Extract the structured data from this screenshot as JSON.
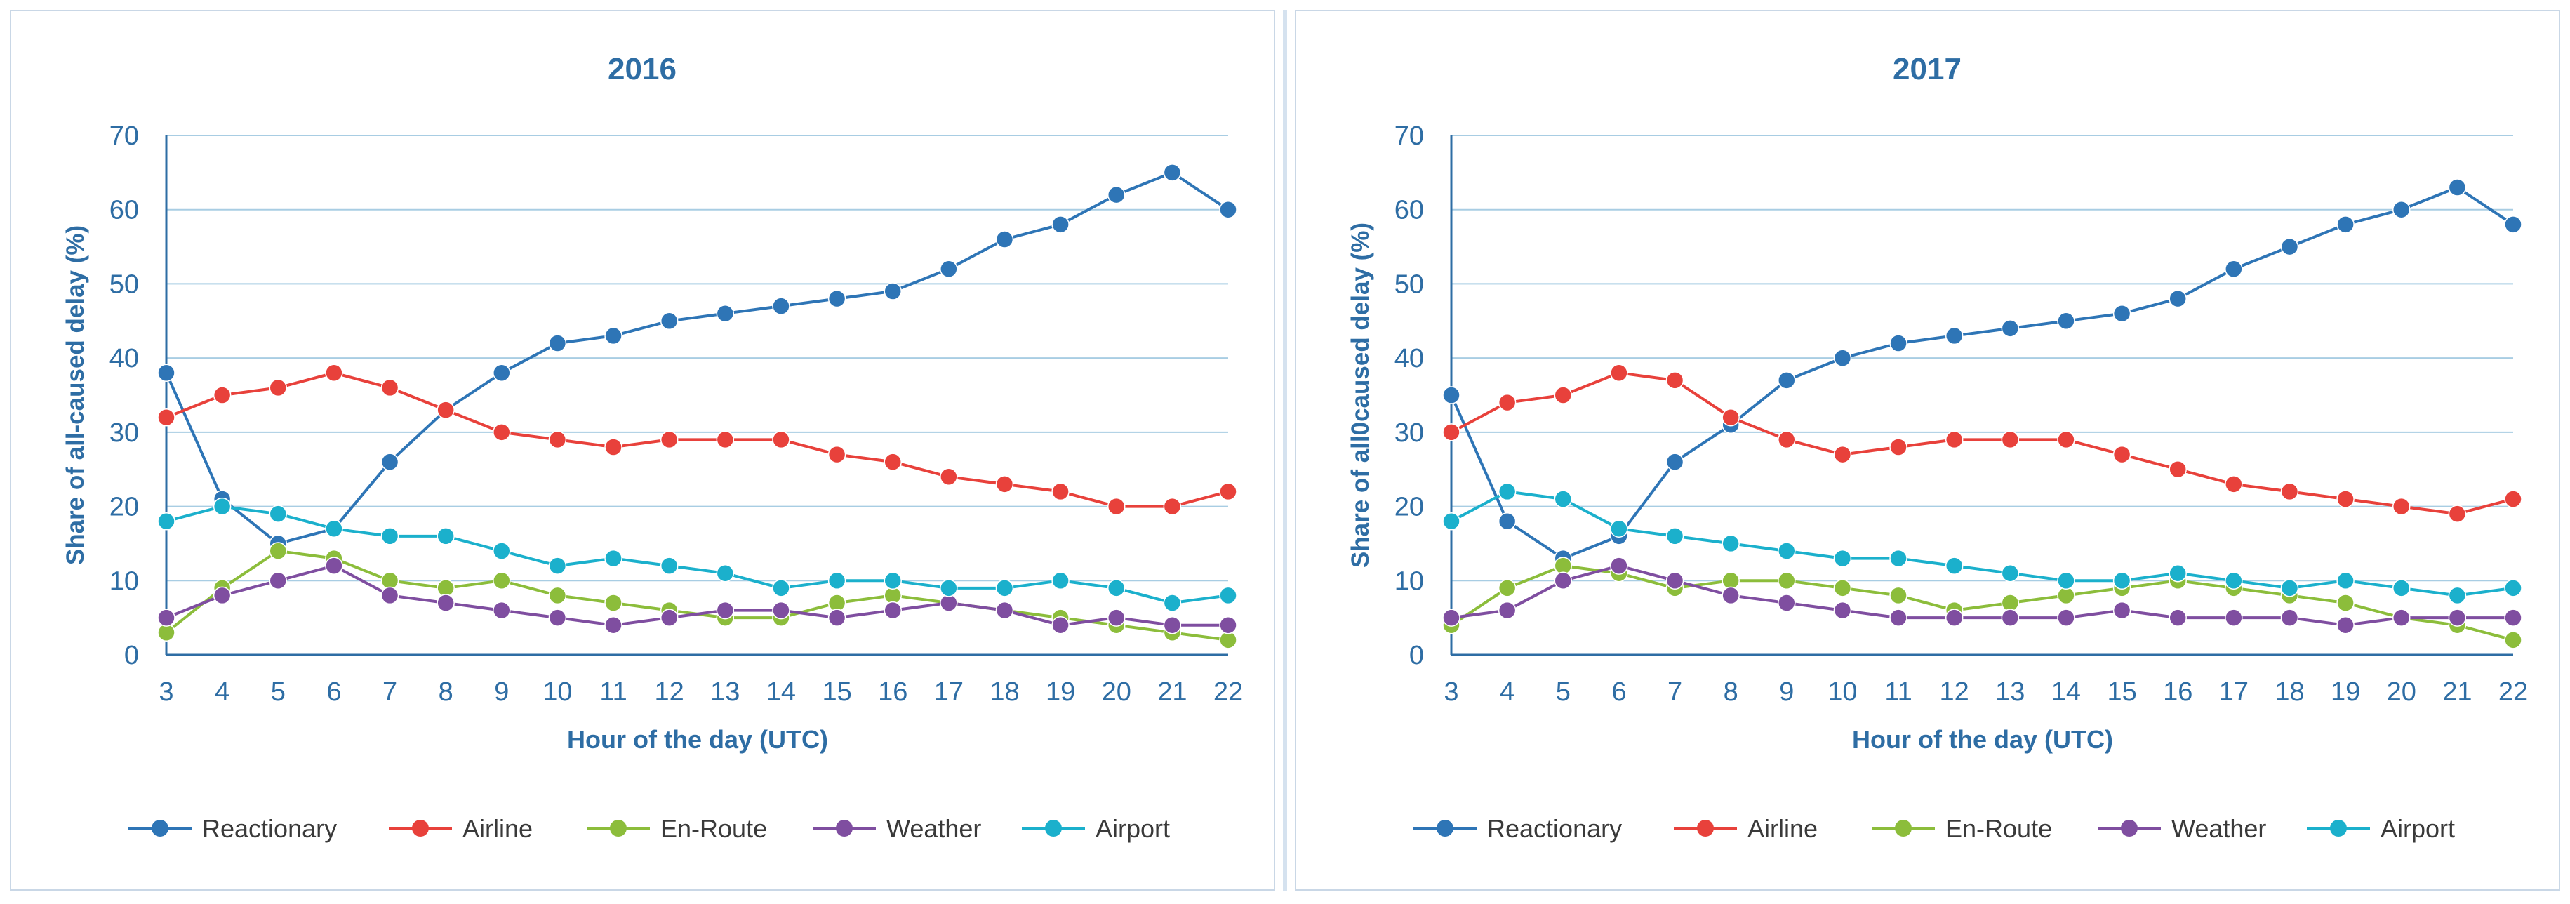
{
  "chart_data": [
    {
      "type": "line",
      "title": "2016",
      "xlabel": "Hour of the day (UTC)",
      "ylabel": "Share of all-caused delay (%)",
      "ylim": [
        0,
        70
      ],
      "yticks": [
        0,
        10,
        20,
        30,
        40,
        50,
        60,
        70
      ],
      "grid": true,
      "legend_position": "bottom",
      "categories": [
        "3",
        "4",
        "5",
        "6",
        "7",
        "8",
        "9",
        "10",
        "11",
        "12",
        "13",
        "14",
        "15",
        "16",
        "17",
        "18",
        "19",
        "20",
        "21",
        "22"
      ],
      "series": [
        {
          "name": "Reactionary",
          "color": "#2e75b6",
          "values": [
            38,
            21,
            15,
            17,
            26,
            33,
            38,
            42,
            43,
            45,
            46,
            47,
            48,
            49,
            52,
            56,
            58,
            62,
            65,
            60
          ]
        },
        {
          "name": "Airline",
          "color": "#e8413b",
          "values": [
            32,
            35,
            36,
            38,
            36,
            33,
            30,
            29,
            28,
            29,
            29,
            29,
            27,
            26,
            24,
            23,
            22,
            20,
            20,
            22
          ]
        },
        {
          "name": "En-Route",
          "color": "#8cbd3b",
          "values": [
            3,
            9,
            14,
            13,
            10,
            9,
            10,
            8,
            7,
            6,
            5,
            5,
            7,
            8,
            7,
            6,
            5,
            4,
            3,
            2
          ]
        },
        {
          "name": "Weather",
          "color": "#7f4ea0",
          "values": [
            5,
            8,
            10,
            12,
            8,
            7,
            6,
            5,
            4,
            5,
            6,
            6,
            5,
            6,
            7,
            6,
            4,
            5,
            4,
            4
          ]
        },
        {
          "name": "Airport",
          "color": "#1bb0cc",
          "values": [
            18,
            20,
            19,
            17,
            16,
            16,
            14,
            12,
            13,
            12,
            11,
            9,
            10,
            10,
            9,
            9,
            10,
            9,
            7,
            8
          ]
        }
      ]
    },
    {
      "type": "line",
      "title": "2017",
      "xlabel": "Hour of the day (UTC)",
      "ylabel": "Share of all0caused delay (%)",
      "ylim": [
        0,
        70
      ],
      "yticks": [
        0,
        10,
        20,
        30,
        40,
        50,
        60,
        70
      ],
      "grid": true,
      "legend_position": "bottom",
      "categories": [
        "3",
        "4",
        "5",
        "6",
        "7",
        "8",
        "9",
        "10",
        "11",
        "12",
        "13",
        "14",
        "15",
        "16",
        "17",
        "18",
        "19",
        "20",
        "21",
        "22"
      ],
      "series": [
        {
          "name": "Reactionary",
          "color": "#2e75b6",
          "values": [
            35,
            18,
            13,
            16,
            26,
            31,
            37,
            40,
            42,
            43,
            44,
            45,
            46,
            48,
            52,
            55,
            58,
            60,
            63,
            58
          ]
        },
        {
          "name": "Airline",
          "color": "#e8413b",
          "values": [
            30,
            34,
            35,
            38,
            37,
            32,
            29,
            27,
            28,
            29,
            29,
            29,
            27,
            25,
            23,
            22,
            21,
            20,
            19,
            21
          ]
        },
        {
          "name": "En-Route",
          "color": "#8cbd3b",
          "values": [
            4,
            9,
            12,
            11,
            9,
            10,
            10,
            9,
            8,
            6,
            7,
            8,
            9,
            10,
            9,
            8,
            7,
            5,
            4,
            2
          ]
        },
        {
          "name": "Weather",
          "color": "#7f4ea0",
          "values": [
            5,
            6,
            10,
            12,
            10,
            8,
            7,
            6,
            5,
            5,
            5,
            5,
            6,
            5,
            5,
            5,
            4,
            5,
            5,
            5
          ]
        },
        {
          "name": "Airport",
          "color": "#1bb0cc",
          "values": [
            18,
            22,
            21,
            17,
            16,
            15,
            14,
            13,
            13,
            12,
            11,
            10,
            10,
            11,
            10,
            9,
            10,
            9,
            8,
            9
          ]
        }
      ]
    }
  ]
}
